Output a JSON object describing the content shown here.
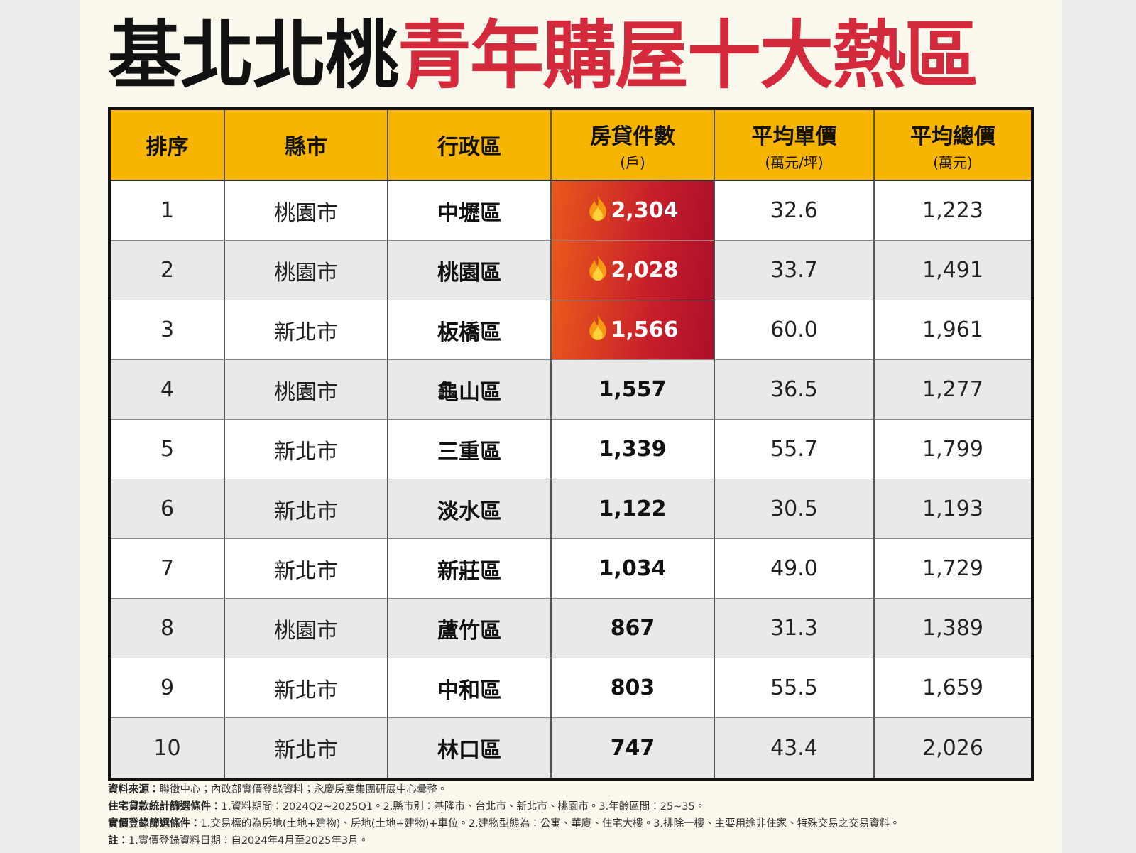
{
  "title": {
    "black": "基北北桃",
    "red": "青年購屋十大熱區"
  },
  "table": {
    "columns": [
      {
        "label": "排序"
      },
      {
        "label": "縣市"
      },
      {
        "label": "行政區"
      },
      {
        "label": "房貸件數",
        "unit": "(戶)"
      },
      {
        "label": "平均單價",
        "unit": "(萬元/坪)"
      },
      {
        "label": "平均總價",
        "unit": "(萬元)"
      }
    ],
    "rows": [
      [
        "1",
        "桃園市",
        "中壢區",
        "2,304",
        "32.6",
        "1,223"
      ],
      [
        "2",
        "桃園市",
        "桃園區",
        "2,028",
        "33.7",
        "1,491"
      ],
      [
        "3",
        "新北市",
        "板橋區",
        "1,566",
        "60.0",
        "1,961"
      ],
      [
        "4",
        "桃園市",
        "龜山區",
        "1,557",
        "36.5",
        "1,277"
      ],
      [
        "5",
        "新北市",
        "三重區",
        "1,339",
        "55.7",
        "1,799"
      ],
      [
        "6",
        "新北市",
        "淡水區",
        "1,122",
        "30.5",
        "1,193"
      ],
      [
        "7",
        "新北市",
        "新莊區",
        "1,034",
        "49.0",
        "1,729"
      ],
      [
        "8",
        "桃園市",
        "蘆竹區",
        "867",
        "31.3",
        "1,389"
      ],
      [
        "9",
        "新北市",
        "中和區",
        "803",
        "55.5",
        "1,659"
      ],
      [
        "10",
        "新北市",
        "林口區",
        "747",
        "43.4",
        "2,026"
      ]
    ]
  },
  "notes": [
    {
      "label": "資料來源：",
      "text": "聯徵中心；內政部實價登錄資料；永慶房產集團研展中心彙整。"
    },
    {
      "label": "住宅貸款統計篩選條件：",
      "text": "1.資料期間：2024Q2~2025Q1。2.縣市別：基隆市、台北市、新北市、桃園市。3.年齡區間：25~35。"
    },
    {
      "label": "實價登錄篩選條件：",
      "text": "1.交易標的為房地(土地+建物)、房地(土地+建物)+車位。2.建物型態為：公寓、華廈、住宅大樓。3.排除一樓、主要用途非住家、特殊交易之交易資料。"
    },
    {
      "label": "註：",
      "text": "1.實價登錄資料日期：自2024年4月至2025年3月。"
    }
  ]
}
